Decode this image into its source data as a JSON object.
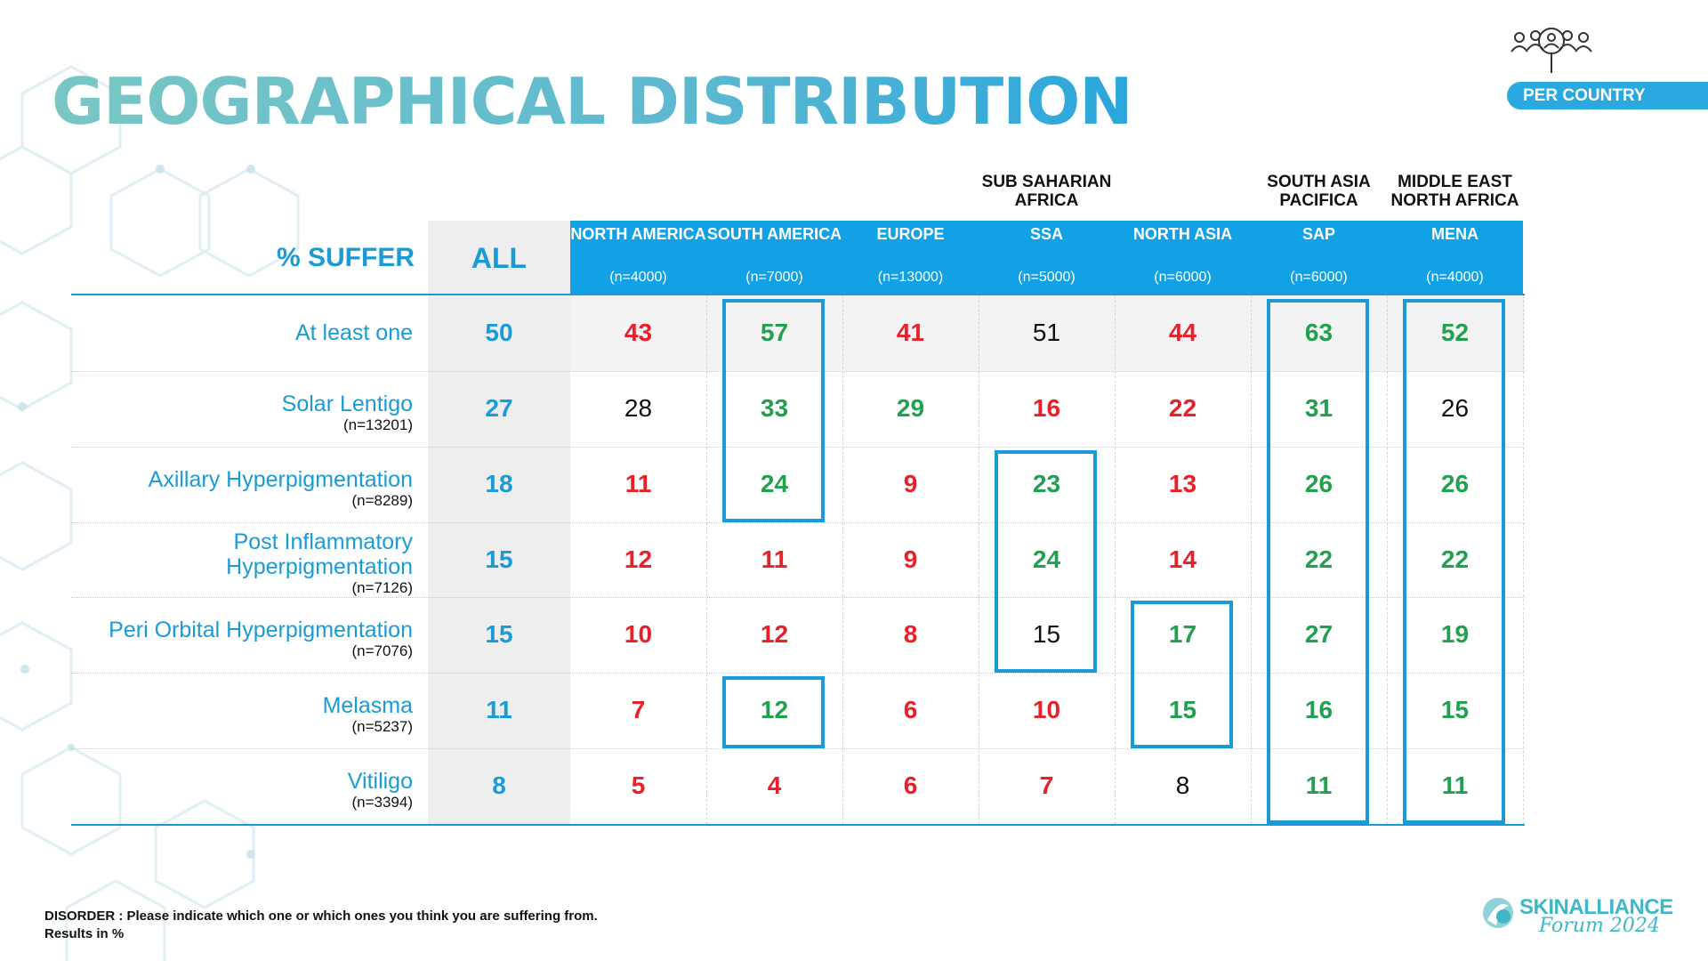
{
  "title": "GEOGRAPHICAL DISTRIBUTION",
  "badge": "PER COUNTRY",
  "colors": {
    "accent": "#1a9bd6",
    "header": "#13a1e6",
    "above": "#22a050",
    "below": "#e8202a",
    "neutral": "#111111"
  },
  "icons": [
    "people-magnifier-icon",
    "skinalliance-logo-icon"
  ],
  "chart_data": {
    "type": "table",
    "corner_label": "% SUFFER",
    "region_labels": [
      {
        "col": 3,
        "text": "SUB SAHARIAN AFRICA"
      },
      {
        "col": 5,
        "text": "SOUTH ASIA PACIFICA"
      },
      {
        "col": 6,
        "text": "MIDDLE EAST NORTH AFRICA"
      }
    ],
    "all_label": "ALL",
    "columns": [
      {
        "name": "NORTH AMERICA",
        "n": "(n=4000)"
      },
      {
        "name": "SOUTH AMERICA",
        "n": "(n=7000)"
      },
      {
        "name": "EUROPE",
        "n": "(n=13000)"
      },
      {
        "name": "SSA",
        "n": "(n=5000)"
      },
      {
        "name": "NORTH ASIA",
        "n": "(n=6000)"
      },
      {
        "name": "SAP",
        "n": "(n=6000)"
      },
      {
        "name": "MENA",
        "n": "(n=4000)"
      }
    ],
    "rows": [
      {
        "label": "At least one",
        "n": "",
        "all": 50,
        "values": [
          43,
          57,
          41,
          51,
          44,
          63,
          52
        ],
        "colors": [
          "red",
          "green",
          "red",
          "black",
          "red",
          "green",
          "green"
        ]
      },
      {
        "label": "Solar Lentigo",
        "n": "(n=13201)",
        "all": 27,
        "values": [
          28,
          33,
          29,
          16,
          22,
          31,
          26
        ],
        "colors": [
          "black",
          "green",
          "green",
          "red",
          "red",
          "green",
          "black"
        ]
      },
      {
        "label": "Axillary Hyperpigmentation",
        "n": "(n=8289)",
        "all": 18,
        "values": [
          11,
          24,
          9,
          23,
          13,
          26,
          26
        ],
        "colors": [
          "red",
          "green",
          "red",
          "green",
          "red",
          "green",
          "green"
        ]
      },
      {
        "label": "Post Inflammatory Hyperpigmentation",
        "n": "(n=7126)",
        "all": 15,
        "values": [
          12,
          11,
          9,
          24,
          14,
          22,
          22
        ],
        "colors": [
          "red",
          "red",
          "red",
          "green",
          "red",
          "green",
          "green"
        ]
      },
      {
        "label": "Peri Orbital Hyperpigmentation",
        "n": "(n=7076)",
        "all": 15,
        "values": [
          10,
          12,
          8,
          15,
          17,
          27,
          19
        ],
        "colors": [
          "red",
          "red",
          "red",
          "black",
          "green",
          "green",
          "green"
        ]
      },
      {
        "label": "Melasma",
        "n": "(n=5237)",
        "all": 11,
        "values": [
          7,
          12,
          6,
          10,
          15,
          16,
          15
        ],
        "colors": [
          "red",
          "green",
          "red",
          "red",
          "green",
          "green",
          "green"
        ]
      },
      {
        "label": "Vitiligo",
        "n": "(n=3394)",
        "all": 8,
        "values": [
          5,
          4,
          6,
          7,
          8,
          11,
          11
        ],
        "colors": [
          "red",
          "red",
          "red",
          "red",
          "black",
          "green",
          "green"
        ]
      }
    ],
    "highlights": [
      {
        "col": 1,
        "row_from": 0,
        "row_to": 2
      },
      {
        "col": 1,
        "row_from": 5,
        "row_to": 5
      },
      {
        "col": 3,
        "row_from": 2,
        "row_to": 4
      },
      {
        "col": 4,
        "row_from": 4,
        "row_to": 5
      },
      {
        "col": 5,
        "row_from": 0,
        "row_to": 6
      },
      {
        "col": 6,
        "row_from": 0,
        "row_to": 6
      }
    ]
  },
  "footnote": {
    "line1": "DISORDER : Please indicate which one or which ones you think you are suffering from.",
    "line2": "Results in %"
  },
  "logo": {
    "name": "SKINALLIANCE",
    "sub": "Forum 2024"
  }
}
